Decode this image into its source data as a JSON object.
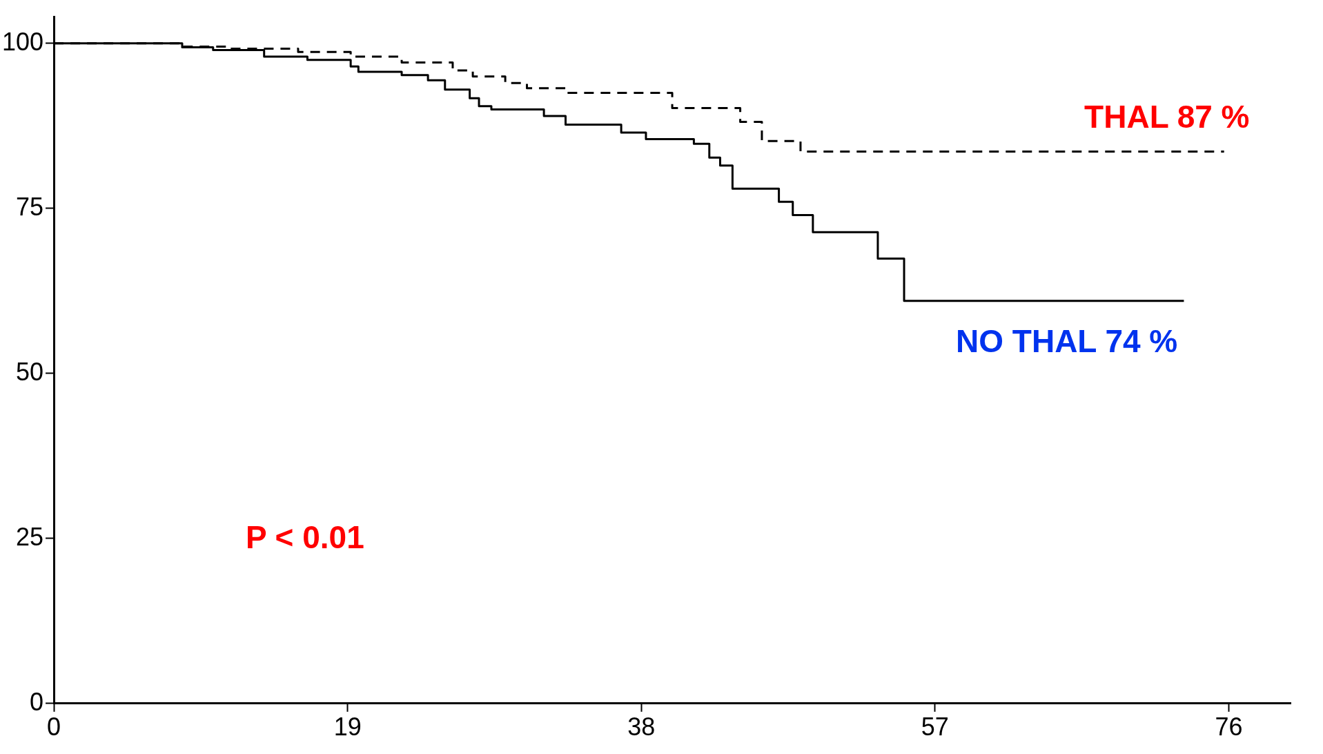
{
  "chart_data": {
    "type": "step",
    "xlim": [
      0,
      80
    ],
    "xticks": [
      0,
      19,
      38,
      57,
      76
    ],
    "ylim": [
      0,
      104
    ],
    "yticks": [
      0,
      25,
      50,
      75,
      100
    ],
    "grid": false,
    "legend": false,
    "marker": "none",
    "series": [
      {
        "color": "#000000",
        "line_style": "dashed",
        "x": [
          0,
          8.1,
          11.4,
          15.8,
          19.2,
          22.5,
          25.8,
          27.1,
          29.2,
          30.6,
          33.1,
          40,
          44.4,
          45.8,
          48.3,
          48.9,
          75.7
        ],
        "values": [
          100,
          99.5,
          99.2,
          98.7,
          98,
          97.1,
          95.9,
          95,
          94,
          93.2,
          92.5,
          90.2,
          88.1,
          85.2,
          83.6,
          83.6,
          83.6
        ]
      },
      {
        "color": "#000000",
        "line_style": "solid",
        "x": [
          0,
          8.3,
          10.3,
          13.6,
          16.4,
          19.2,
          19.7,
          22.5,
          24.2,
          25.3,
          26.9,
          27.5,
          28.3,
          31.7,
          33.1,
          36.7,
          38.3,
          41.4,
          42.4,
          43.1,
          43.9,
          46.9,
          47.8,
          49.1,
          53.3,
          55,
          73.1
        ],
        "values": [
          100,
          99.4,
          99,
          98,
          97.5,
          96.5,
          95.7,
          95.2,
          94.4,
          93,
          91.7,
          90.5,
          90,
          89,
          87.7,
          86.5,
          85.5,
          84.8,
          82.7,
          81.5,
          78,
          76,
          74,
          71.4,
          67.4,
          61,
          61
        ]
      }
    ],
    "annotations": [
      "THAL 87 %",
      "NO THAL 74 %",
      "P < 0.01"
    ]
  }
}
